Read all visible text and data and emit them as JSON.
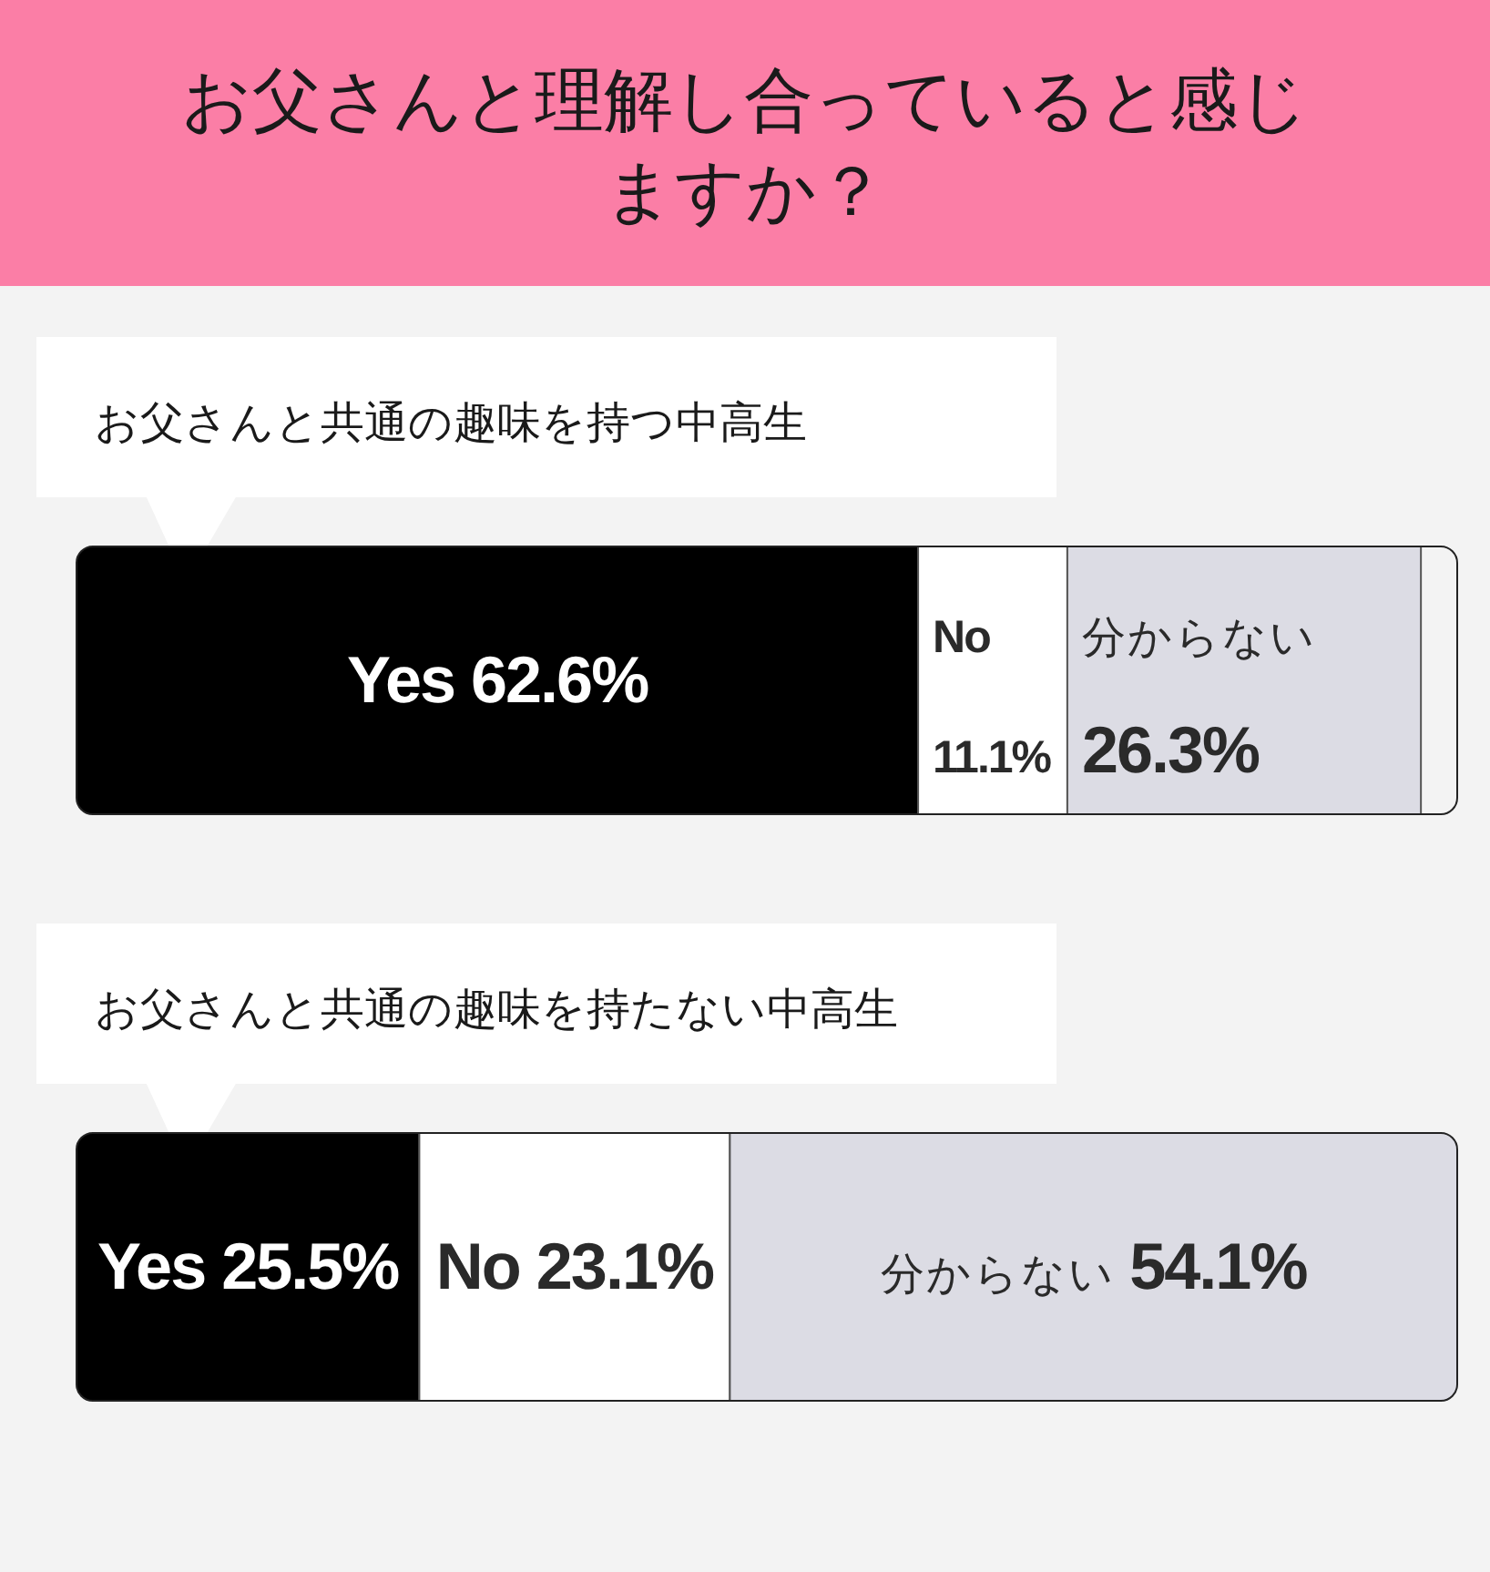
{
  "chart_data": {
    "type": "bar",
    "orientation": "horizontal",
    "stacked": true,
    "title": "お父さんと理解し合っていると感じますか？",
    "categories": [
      "お父さんと共通の趣味を持つ中高生",
      "お父さんと共通の趣味を持たない中高生"
    ],
    "series": [
      {
        "name": "Yes",
        "color": "#000000",
        "values": [
          62.6,
          25.5
        ],
        "value_labels": [
          "62.6%",
          "25.5%"
        ]
      },
      {
        "name": "No",
        "color": "#ffffff",
        "values": [
          11.1,
          23.1
        ],
        "value_labels": [
          "11.1%",
          "23.1%"
        ]
      },
      {
        "name": "分からない",
        "color": "#dcdce4",
        "values": [
          26.3,
          54.1
        ],
        "value_labels": [
          "26.3%",
          "54.1%"
        ]
      }
    ]
  }
}
